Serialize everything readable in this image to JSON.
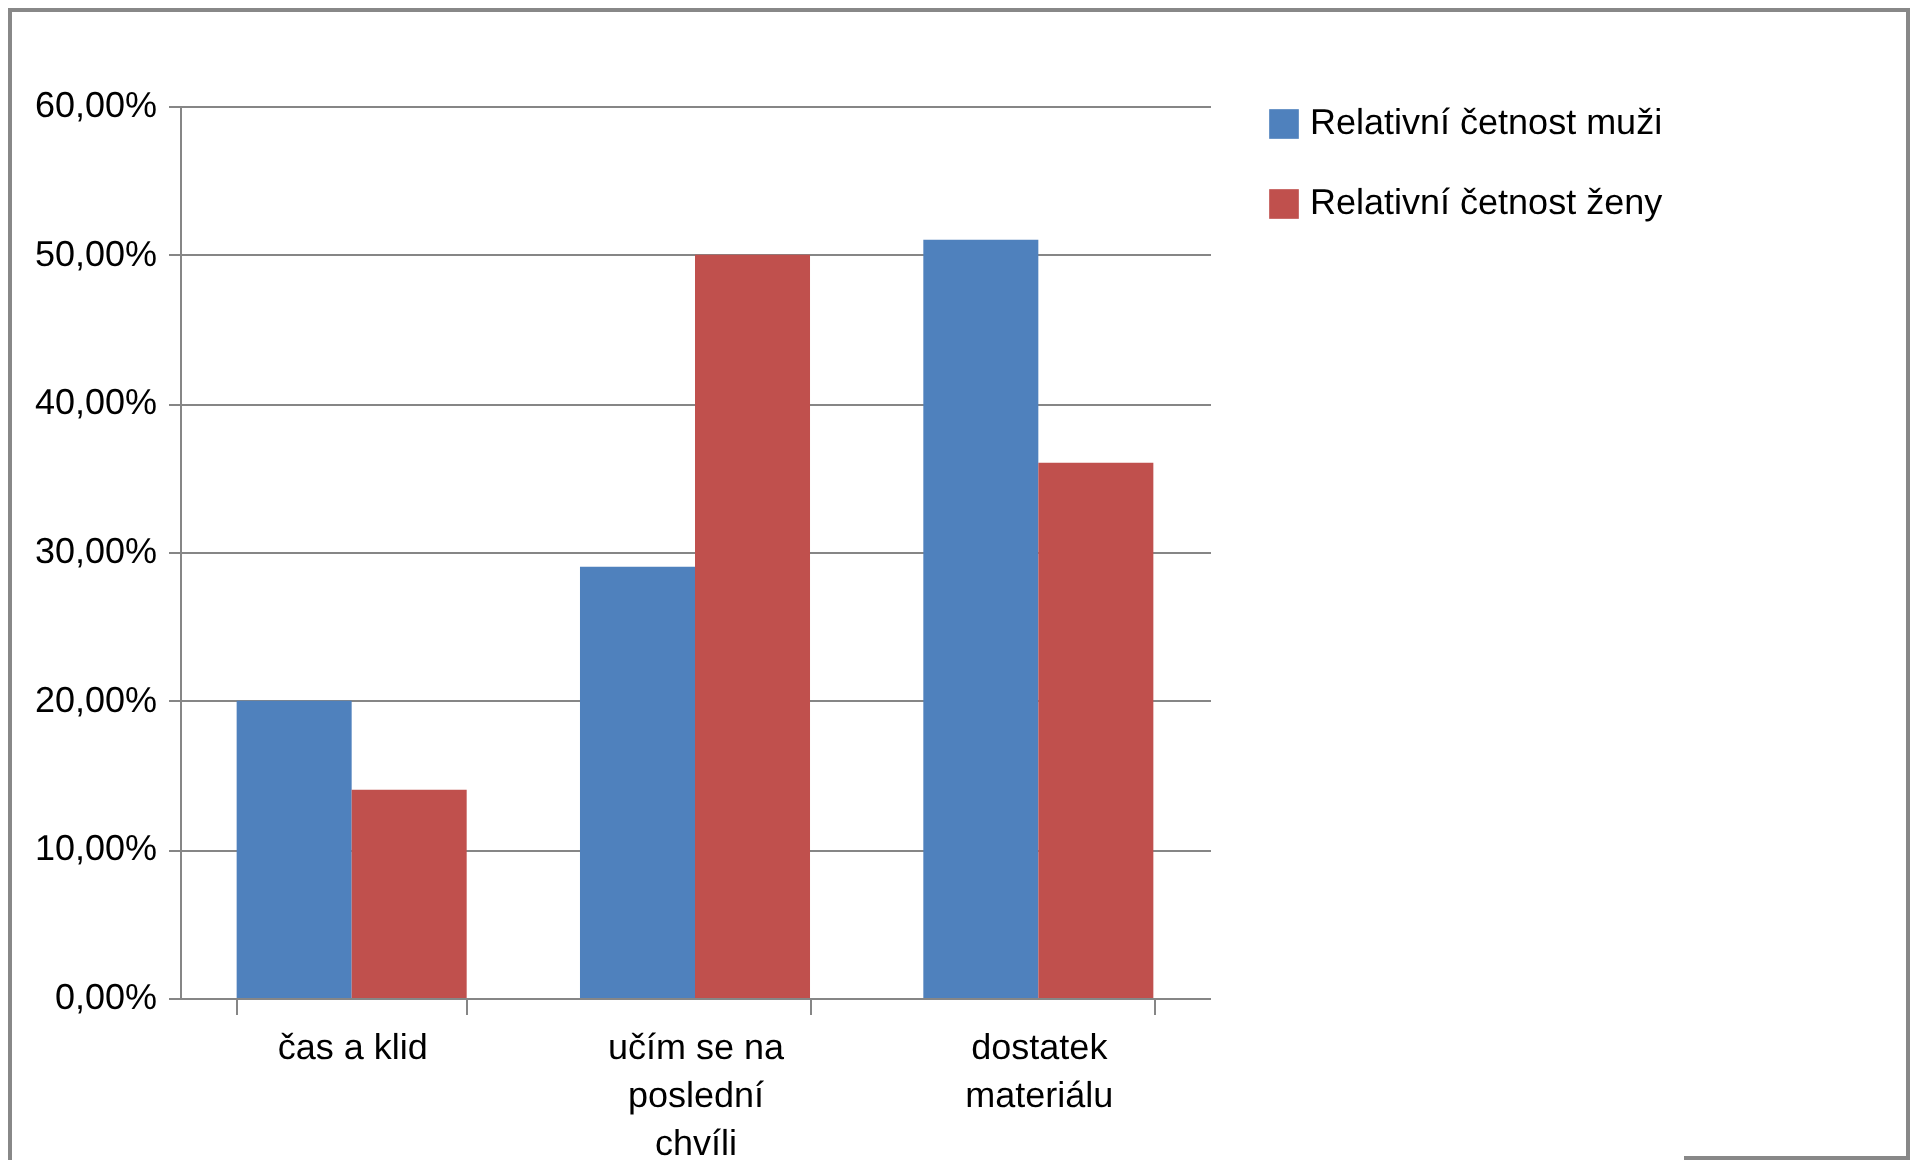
{
  "chart_data": {
    "type": "bar",
    "categories": [
      "čas a klid",
      "učím se na poslední chvíli",
      "dostatek materiálu"
    ],
    "series": [
      {
        "name": "Relativní četnost muži",
        "color": "#4f81bd",
        "values": [
          20,
          29,
          51
        ]
      },
      {
        "name": "Relativní četnost ženy",
        "color": "#c0504d",
        "values": [
          14,
          50,
          36
        ]
      }
    ],
    "ylim": [
      0,
      60
    ],
    "yticks": [
      {
        "value": 0,
        "label": "0,00%"
      },
      {
        "value": 10,
        "label": "10,00%"
      },
      {
        "value": 20,
        "label": "20,00%"
      },
      {
        "value": 30,
        "label": "30,00%"
      },
      {
        "value": 40,
        "label": "40,00%"
      },
      {
        "value": 50,
        "label": "50,00%"
      },
      {
        "value": 60,
        "label": "60,00%"
      }
    ],
    "grid": "y",
    "legend": "right"
  }
}
